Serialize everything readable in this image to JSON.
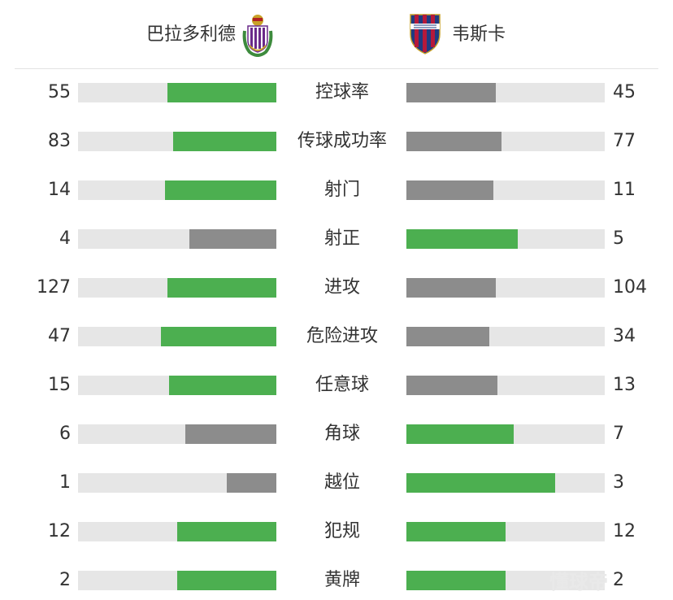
{
  "colors": {
    "winner": "#4caf50",
    "other": "#8c8c8c",
    "track": "#e6e6e6"
  },
  "home_team": {
    "name": "巴拉多利德",
    "crest_icon": "real-valladolid-crest-icon"
  },
  "away_team": {
    "name": "韦斯卡",
    "crest_icon": "sd-huesca-crest-icon"
  },
  "stats": [
    {
      "label": "控球率",
      "home": "55",
      "away": "45",
      "home_fill": 0.55,
      "away_fill": 0.45,
      "home_lead": true,
      "away_lead": false
    },
    {
      "label": "传球成功率",
      "home": "83",
      "away": "77",
      "home_fill": 0.52,
      "away_fill": 0.48,
      "home_lead": true,
      "away_lead": false
    },
    {
      "label": "射门",
      "home": "14",
      "away": "11",
      "home_fill": 0.56,
      "away_fill": 0.44,
      "home_lead": true,
      "away_lead": false
    },
    {
      "label": "射正",
      "home": "4",
      "away": "5",
      "home_fill": 0.44,
      "away_fill": 0.56,
      "home_lead": false,
      "away_lead": true
    },
    {
      "label": "进攻",
      "home": "127",
      "away": "104",
      "home_fill": 0.55,
      "away_fill": 0.45,
      "home_lead": true,
      "away_lead": false
    },
    {
      "label": "危险进攻",
      "home": "47",
      "away": "34",
      "home_fill": 0.58,
      "away_fill": 0.42,
      "home_lead": true,
      "away_lead": false
    },
    {
      "label": "任意球",
      "home": "15",
      "away": "13",
      "home_fill": 0.54,
      "away_fill": 0.46,
      "home_lead": true,
      "away_lead": false
    },
    {
      "label": "角球",
      "home": "6",
      "away": "7",
      "home_fill": 0.46,
      "away_fill": 0.54,
      "home_lead": false,
      "away_lead": true
    },
    {
      "label": "越位",
      "home": "1",
      "away": "3",
      "home_fill": 0.25,
      "away_fill": 0.75,
      "home_lead": false,
      "away_lead": true
    },
    {
      "label": "犯规",
      "home": "12",
      "away": "12",
      "home_fill": 0.5,
      "away_fill": 0.5,
      "home_lead": true,
      "away_lead": true
    },
    {
      "label": "黄牌",
      "home": "2",
      "away": "2",
      "home_fill": 0.5,
      "away_fill": 0.5,
      "home_lead": true,
      "away_lead": true
    }
  ],
  "watermark": "懂球帝"
}
